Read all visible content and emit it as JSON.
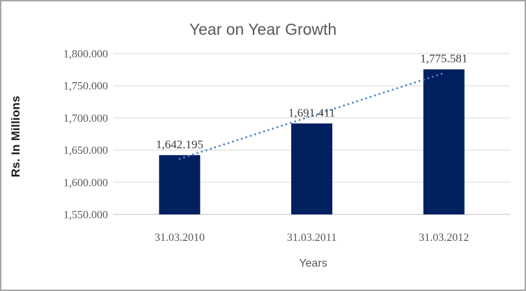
{
  "chart_data": {
    "type": "bar",
    "title": "Year on Year Growth",
    "xlabel": "Years",
    "ylabel": "Rs. In Millions",
    "categories": [
      "31.03.2010",
      "31.03.2011",
      "31.03.2012"
    ],
    "values": [
      1642.195,
      1691.411,
      1775.581
    ],
    "data_labels": [
      "1,642.195",
      "1,691.411",
      "1,775.581"
    ],
    "ylim": [
      1550,
      1800
    ],
    "ytick_step": 50,
    "ytick_labels": [
      "1,550.000",
      "1,600.000",
      "1,650.000",
      "1,700.000",
      "1,750.000",
      "1,800.000"
    ],
    "grid": "horizontal",
    "legend": "none",
    "trendline": {
      "type": "linear",
      "style": "dotted"
    },
    "colors": {
      "bar": "#002060",
      "trendline": "#4a86c8",
      "gridline": "#d9d9d9",
      "axis_line": "#bfbfbf",
      "title_text": "#595959",
      "tick_text": "#595959",
      "data_label_text": "#3d3d3d",
      "frame_border": "#a6a6a6",
      "background": "#ffffff"
    }
  }
}
